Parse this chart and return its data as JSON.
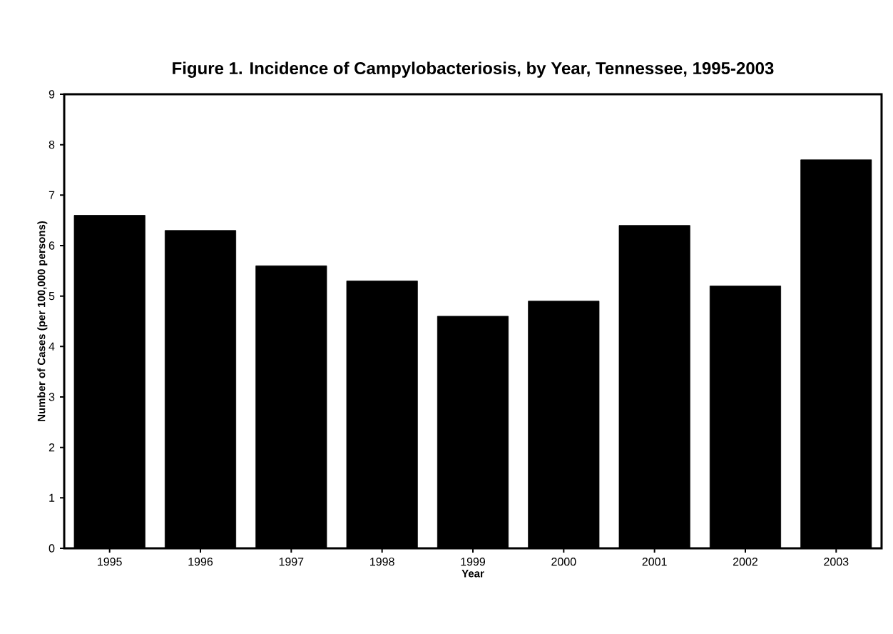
{
  "chart_data": {
    "type": "bar",
    "title": "Figure 1. Incidence of Campylobacteriosis, by Year, Tennessee, 1995-2003",
    "xlabel": "Year",
    "ylabel": "Number of Cases (per 100,000 persons)",
    "categories": [
      "1995",
      "1996",
      "1997",
      "1998",
      "1999",
      "2000",
      "2001",
      "2002",
      "2003"
    ],
    "values": [
      6.6,
      6.3,
      5.6,
      5.3,
      4.6,
      4.9,
      6.4,
      5.2,
      7.7
    ],
    "color": "#000000",
    "ylim": [
      0,
      9
    ],
    "yticks": [
      0,
      1,
      2,
      3,
      4,
      5,
      6,
      7,
      8,
      9
    ],
    "grid": false
  }
}
